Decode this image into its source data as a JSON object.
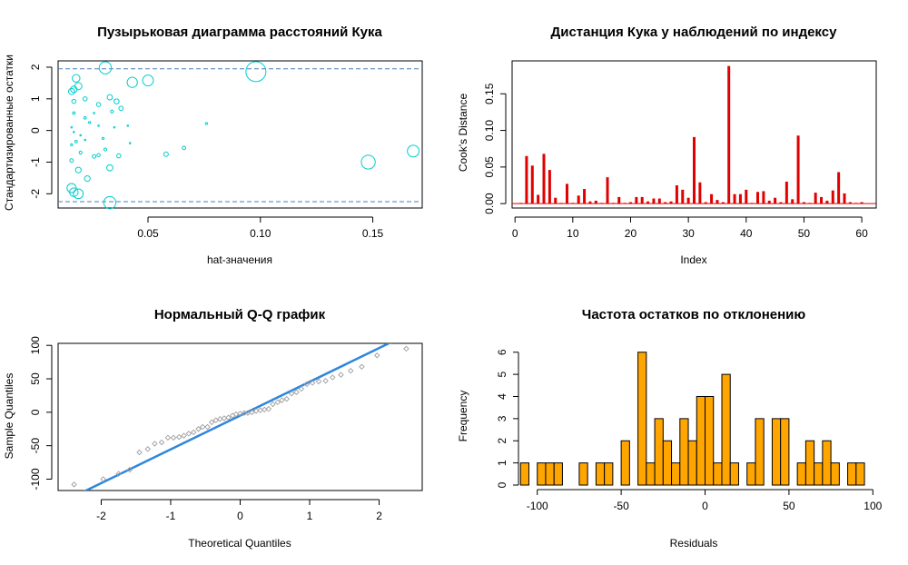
{
  "colors": {
    "bubble": "#00CDCD",
    "ref_line": "#4A7FB5",
    "cook_bar": "#E00000",
    "qq_points": "#9E9E9E",
    "qq_line": "#2E86DE",
    "hist_fill": "#FFA500",
    "axis": "#000000"
  },
  "chart_data": [
    {
      "type": "scatter",
      "title": "Пузырьковая диаграмма расстояний Кука",
      "xlabel": "hat-значения",
      "ylabel": "Стандартизированные остатки",
      "xlim": [
        0.01,
        0.172
      ],
      "ylim": [
        -2.45,
        2.2
      ],
      "xticks": [
        0.05,
        0.1,
        0.15
      ],
      "xtick_labels": [
        "0.05",
        "0.10",
        "0.15"
      ],
      "yticks": [
        -2,
        -1,
        0,
        1,
        2
      ],
      "ytick_labels": [
        "-2",
        "-1",
        "0",
        "1",
        "2"
      ],
      "ref_lines": [
        1.95,
        -2.25
      ],
      "points": [
        {
          "x": 0.098,
          "y": 1.86,
          "cook": 0.19
        },
        {
          "x": 0.148,
          "y": -1.0,
          "cook": 0.092
        },
        {
          "x": 0.168,
          "y": -0.65,
          "cook": 0.065
        },
        {
          "x": 0.031,
          "y": 1.98,
          "cook": 0.07
        },
        {
          "x": 0.033,
          "y": -2.28,
          "cook": 0.07
        },
        {
          "x": 0.05,
          "y": 1.58,
          "cook": 0.055
        },
        {
          "x": 0.043,
          "y": 1.52,
          "cook": 0.05
        },
        {
          "x": 0.019,
          "y": -2.0,
          "cook": 0.045
        },
        {
          "x": 0.016,
          "y": -1.82,
          "cook": 0.04
        },
        {
          "x": 0.017,
          "y": -1.95,
          "cook": 0.035
        },
        {
          "x": 0.018,
          "y": 1.65,
          "cook": 0.028
        },
        {
          "x": 0.019,
          "y": 1.4,
          "cook": 0.025
        },
        {
          "x": 0.017,
          "y": 1.3,
          "cook": 0.02
        },
        {
          "x": 0.016,
          "y": 1.23,
          "cook": 0.018
        },
        {
          "x": 0.033,
          "y": -1.18,
          "cook": 0.018
        },
        {
          "x": 0.019,
          "y": -1.25,
          "cook": 0.015
        },
        {
          "x": 0.023,
          "y": -1.52,
          "cook": 0.015
        },
        {
          "x": 0.033,
          "y": 1.05,
          "cook": 0.013
        },
        {
          "x": 0.036,
          "y": 0.92,
          "cook": 0.012
        },
        {
          "x": 0.058,
          "y": -0.75,
          "cook": 0.01
        },
        {
          "x": 0.038,
          "y": 0.7,
          "cook": 0.009
        },
        {
          "x": 0.022,
          "y": 1.0,
          "cook": 0.008
        },
        {
          "x": 0.028,
          "y": 0.82,
          "cook": 0.008
        },
        {
          "x": 0.017,
          "y": 0.92,
          "cook": 0.008
        },
        {
          "x": 0.037,
          "y": -0.8,
          "cook": 0.008
        },
        {
          "x": 0.066,
          "y": -0.55,
          "cook": 0.006
        },
        {
          "x": 0.016,
          "y": -0.95,
          "cook": 0.006
        },
        {
          "x": 0.026,
          "y": -0.82,
          "cook": 0.006
        },
        {
          "x": 0.028,
          "y": -0.78,
          "cook": 0.005
        },
        {
          "x": 0.031,
          "y": -0.6,
          "cook": 0.004
        },
        {
          "x": 0.034,
          "y": 0.6,
          "cook": 0.004
        },
        {
          "x": 0.02,
          "y": -0.7,
          "cook": 0.004
        },
        {
          "x": 0.017,
          "y": 0.55,
          "cook": 0.003
        },
        {
          "x": 0.022,
          "y": 0.4,
          "cook": 0.003
        },
        {
          "x": 0.018,
          "y": -0.35,
          "cook": 0.003
        },
        {
          "x": 0.024,
          "y": 0.25,
          "cook": 0.002
        },
        {
          "x": 0.016,
          "y": -0.45,
          "cook": 0.002
        },
        {
          "x": 0.03,
          "y": -0.25,
          "cook": 0.002
        },
        {
          "x": 0.076,
          "y": 0.22,
          "cook": 0.002
        },
        {
          "x": 0.042,
          "y": -0.4,
          "cook": 0.001
        },
        {
          "x": 0.016,
          "y": 0.1,
          "cook": 0.001
        },
        {
          "x": 0.02,
          "y": -0.15,
          "cook": 0.001
        },
        {
          "x": 0.028,
          "y": 0.15,
          "cook": 0.001
        },
        {
          "x": 0.017,
          "y": -0.05,
          "cook": 0.001
        },
        {
          "x": 0.035,
          "y": 0.1,
          "cook": 0.001
        },
        {
          "x": 0.022,
          "y": -0.3,
          "cook": 0.001
        },
        {
          "x": 0.041,
          "y": 0.15,
          "cook": 0.001
        },
        {
          "x": 0.026,
          "y": 0.55,
          "cook": 0.001
        }
      ]
    },
    {
      "type": "bar",
      "title": "Дистанция Кука у наблюдений по индексу",
      "xlabel": "Index",
      "ylabel": "Cook's Distance",
      "xlim": [
        -0.5,
        62.5
      ],
      "ylim": [
        -0.006,
        0.195
      ],
      "xticks": [
        0,
        10,
        20,
        30,
        40,
        50,
        60
      ],
      "xtick_labels": [
        "0",
        "10",
        "20",
        "30",
        "40",
        "50",
        "60"
      ],
      "yticks": [
        0.0,
        0.05,
        0.1,
        0.15
      ],
      "ytick_labels": [
        "0.00",
        "0.05",
        "0.10",
        "0.15"
      ],
      "x": [
        1,
        2,
        3,
        4,
        5,
        6,
        7,
        8,
        9,
        10,
        11,
        12,
        13,
        14,
        15,
        16,
        17,
        18,
        19,
        20,
        21,
        22,
        23,
        24,
        25,
        26,
        27,
        28,
        29,
        30,
        31,
        32,
        33,
        34,
        35,
        36,
        37,
        38,
        39,
        40,
        41,
        42,
        43,
        44,
        45,
        46,
        47,
        48,
        49,
        50,
        51,
        52,
        53,
        54,
        55,
        56,
        57,
        58,
        59,
        60
      ],
      "values": [
        0.001,
        0.065,
        0.052,
        0.012,
        0.068,
        0.046,
        0.008,
        0.001,
        0.027,
        0.001,
        0.011,
        0.02,
        0.003,
        0.004,
        0.001,
        0.036,
        0.001,
        0.009,
        0.001,
        0.002,
        0.009,
        0.009,
        0.003,
        0.007,
        0.007,
        0.002,
        0.003,
        0.025,
        0.019,
        0.008,
        0.091,
        0.029,
        0.002,
        0.013,
        0.005,
        0.002,
        0.188,
        0.013,
        0.013,
        0.019,
        0.001,
        0.016,
        0.017,
        0.004,
        0.008,
        0.002,
        0.03,
        0.006,
        0.093,
        0.002,
        0.001,
        0.015,
        0.009,
        0.004,
        0.018,
        0.043,
        0.014,
        0.002,
        0.001,
        0.002
      ]
    },
    {
      "type": "scatter",
      "title": "Нормальный Q-Q график",
      "xlabel": "Theoretical Quantiles",
      "ylabel": "Sample Quantiles",
      "xlim": [
        -2.62,
        2.62
      ],
      "ylim": [
        -117,
        103
      ],
      "xticks": [
        -2,
        -1,
        0,
        1,
        2
      ],
      "xtick_labels": [
        "-2",
        "-1",
        "0",
        "1",
        "2"
      ],
      "yticks": [
        -100,
        -50,
        0,
        50,
        100
      ],
      "ytick_labels": [
        "-100",
        "-50",
        "0",
        "50",
        "100"
      ],
      "qq_line": {
        "intercept": -5,
        "slope": 50.5
      },
      "points": [
        {
          "x": -2.39,
          "y": -108
        },
        {
          "x": -1.97,
          "y": -100
        },
        {
          "x": -1.75,
          "y": -92
        },
        {
          "x": -1.59,
          "y": -86
        },
        {
          "x": -1.45,
          "y": -60
        },
        {
          "x": -1.33,
          "y": -55
        },
        {
          "x": -1.23,
          "y": -47
        },
        {
          "x": -1.13,
          "y": -45
        },
        {
          "x": -1.04,
          "y": -38
        },
        {
          "x": -0.96,
          "y": -38
        },
        {
          "x": -0.88,
          "y": -37
        },
        {
          "x": -0.81,
          "y": -35
        },
        {
          "x": -0.74,
          "y": -32
        },
        {
          "x": -0.67,
          "y": -30
        },
        {
          "x": -0.6,
          "y": -25
        },
        {
          "x": -0.54,
          "y": -22
        },
        {
          "x": -0.47,
          "y": -22
        },
        {
          "x": -0.41,
          "y": -15
        },
        {
          "x": -0.35,
          "y": -12
        },
        {
          "x": -0.29,
          "y": -10
        },
        {
          "x": -0.23,
          "y": -9
        },
        {
          "x": -0.17,
          "y": -8
        },
        {
          "x": -0.11,
          "y": -5
        },
        {
          "x": -0.06,
          "y": -3
        },
        {
          "x": 0.0,
          "y": -2
        },
        {
          "x": 0.06,
          "y": -1
        },
        {
          "x": 0.11,
          "y": -1
        },
        {
          "x": 0.17,
          "y": 0
        },
        {
          "x": 0.23,
          "y": 2
        },
        {
          "x": 0.29,
          "y": 3
        },
        {
          "x": 0.35,
          "y": 4
        },
        {
          "x": 0.41,
          "y": 5
        },
        {
          "x": 0.47,
          "y": 12
        },
        {
          "x": 0.54,
          "y": 15
        },
        {
          "x": 0.6,
          "y": 18
        },
        {
          "x": 0.67,
          "y": 20
        },
        {
          "x": 0.74,
          "y": 28
        },
        {
          "x": 0.81,
          "y": 30
        },
        {
          "x": 0.88,
          "y": 35
        },
        {
          "x": 0.96,
          "y": 42
        },
        {
          "x": 1.04,
          "y": 44
        },
        {
          "x": 1.13,
          "y": 46
        },
        {
          "x": 1.23,
          "y": 47
        },
        {
          "x": 1.33,
          "y": 52
        },
        {
          "x": 1.45,
          "y": 56
        },
        {
          "x": 1.59,
          "y": 62
        },
        {
          "x": 1.75,
          "y": 68
        },
        {
          "x": 1.97,
          "y": 85
        },
        {
          "x": 2.39,
          "y": 95
        }
      ]
    },
    {
      "type": "bar",
      "title": "Частота остатков по отклонению",
      "xlabel": "Residuals",
      "ylabel": "Frequency",
      "xlim": [
        -115,
        102
      ],
      "ylim": [
        0,
        6.4
      ],
      "xticks": [
        -100,
        -50,
        0,
        50,
        100
      ],
      "xtick_labels": [
        "-100",
        "-50",
        "0",
        "50",
        "100"
      ],
      "yticks": [
        0,
        1,
        2,
        3,
        4,
        5,
        6
      ],
      "ytick_labels": [
        "0",
        "1",
        "2",
        "3",
        "4",
        "5",
        "6"
      ],
      "bin_width": 5,
      "bin_starts": [
        -110,
        -105,
        -100,
        -95,
        -90,
        -85,
        -80,
        -75,
        -70,
        -65,
        -60,
        -55,
        -50,
        -45,
        -40,
        -35,
        -30,
        -25,
        -20,
        -15,
        -10,
        -5,
        0,
        5,
        10,
        15,
        20,
        25,
        30,
        35,
        40,
        45,
        50,
        55,
        60,
        65,
        70,
        75,
        80,
        85,
        90
      ],
      "values": [
        1,
        0,
        1,
        1,
        1,
        0,
        0,
        1,
        0,
        1,
        1,
        0,
        2,
        0,
        6,
        1,
        3,
        2,
        1,
        3,
        2,
        4,
        4,
        1,
        5,
        1,
        0,
        1,
        3,
        0,
        3,
        3,
        0,
        1,
        2,
        1,
        2,
        1,
        0,
        1,
        1
      ]
    }
  ]
}
